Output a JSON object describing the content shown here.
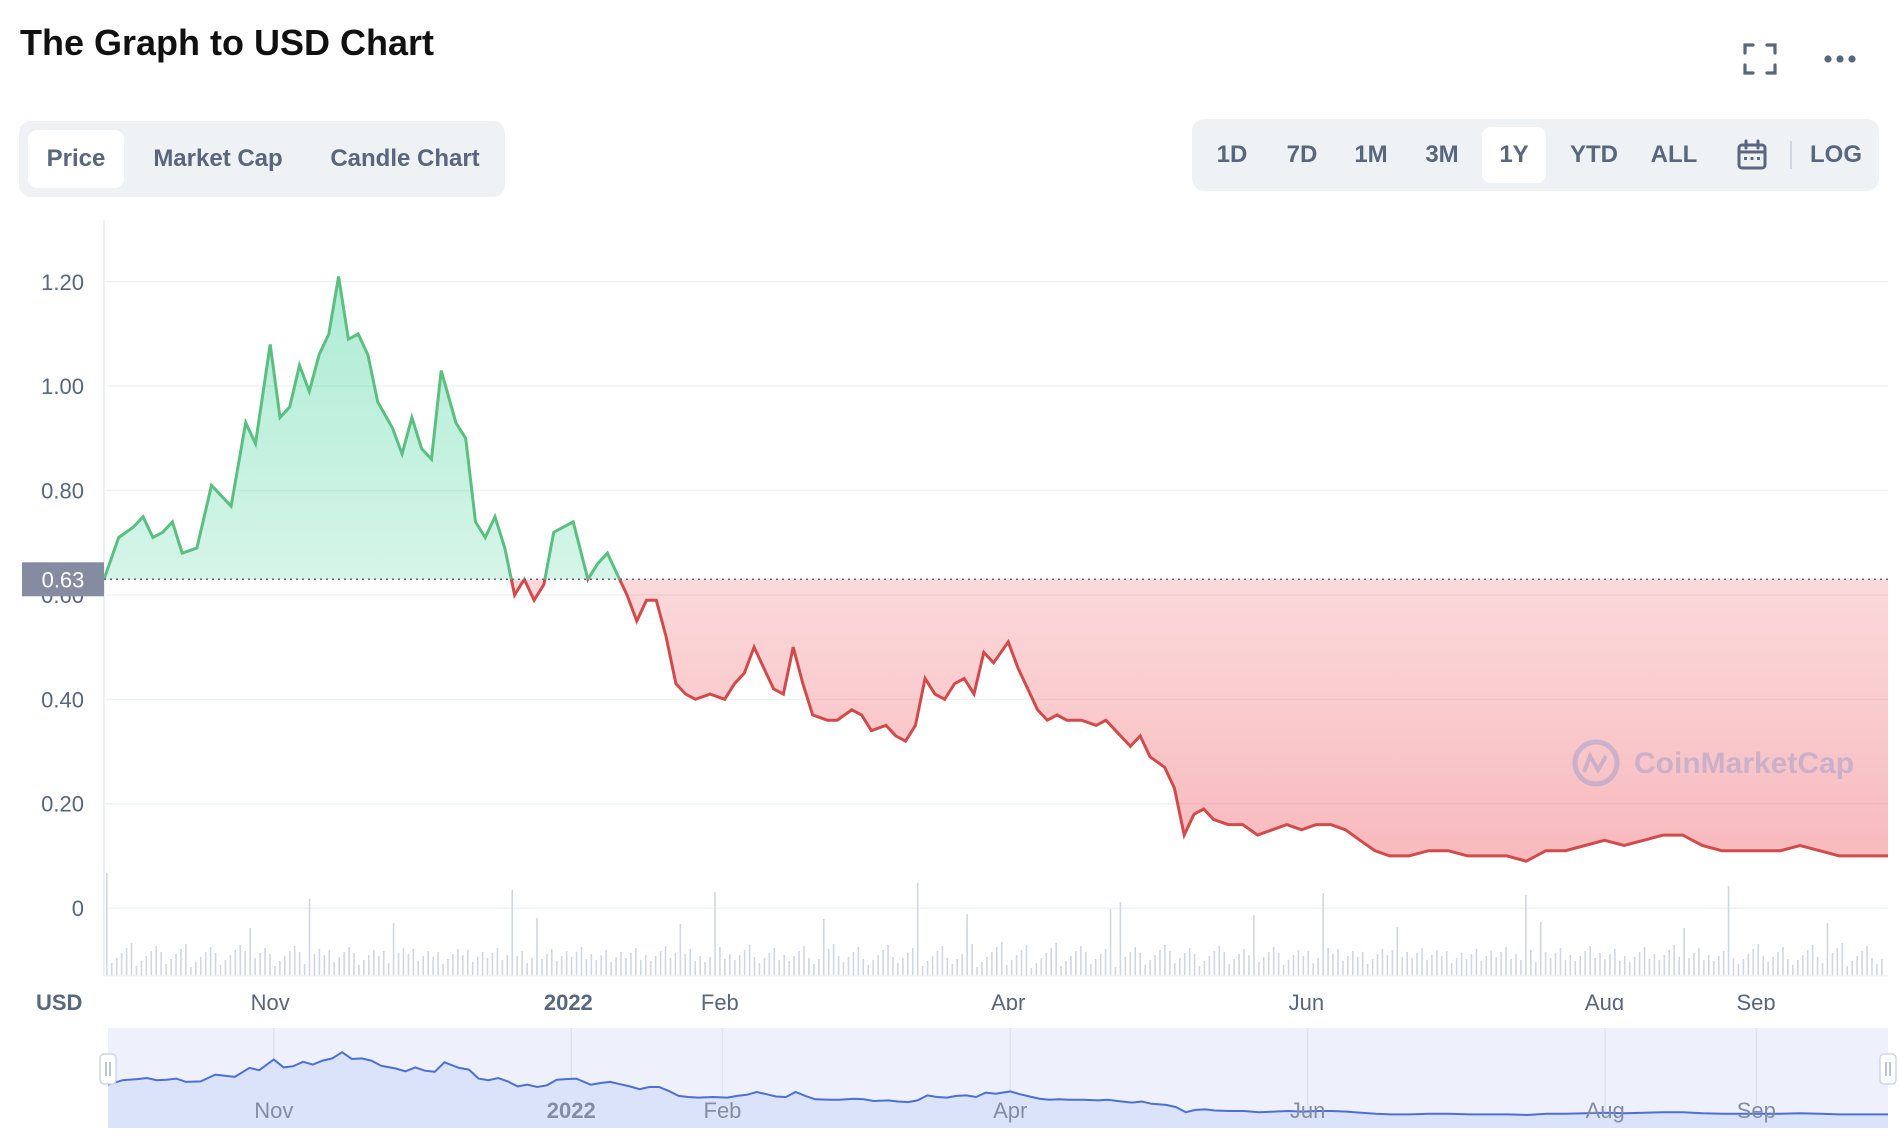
{
  "header": {
    "title": "The Graph to USD Chart",
    "fullscreen_icon": "fullscreen-icon",
    "more_icon": "more-horizontal-icon"
  },
  "tabs": [
    {
      "label": "Price",
      "active": true
    },
    {
      "label": "Market Cap",
      "active": false
    },
    {
      "label": "Candle Chart",
      "active": false
    }
  ],
  "ranges": {
    "items": [
      {
        "label": "1D",
        "active": false
      },
      {
        "label": "7D",
        "active": false
      },
      {
        "label": "1M",
        "active": false
      },
      {
        "label": "3M",
        "active": false
      },
      {
        "label": "1Y",
        "active": true
      },
      {
        "label": "YTD",
        "active": false
      },
      {
        "label": "ALL",
        "active": false
      }
    ],
    "calendar_icon": "calendar-icon",
    "log_label": "LOG"
  },
  "watermark": "CoinMarketCap",
  "colors": {
    "up": "#16c784",
    "up_line": "#5bbf80",
    "down": "#ea3943",
    "down_line": "#d34a4a",
    "navigator_line": "#4b6fd6",
    "navigator_fill": "#dbe3fb",
    "text_muted": "#58667e"
  },
  "chart_data": {
    "type": "line",
    "title": "The Graph to USD Chart",
    "ylabel": "USD",
    "xlabel": "",
    "ylim": [
      -0.13,
      1.28
    ],
    "yticks": [
      "1.20",
      "1.00",
      "0.80",
      "0.60",
      "0.40",
      "0.20",
      "0"
    ],
    "ytick_values": [
      1.2,
      1.0,
      0.8,
      0.6,
      0.4,
      0.2,
      0
    ],
    "x_range": [
      "2021-09-28",
      "2022-09-28"
    ],
    "xticks": [
      {
        "label": "Nov",
        "date": "2021-11-01",
        "bold": false
      },
      {
        "label": "2022",
        "date": "2022-01-01",
        "bold": true
      },
      {
        "label": "Feb",
        "date": "2022-02-01",
        "bold": false
      },
      {
        "label": "Apr",
        "date": "2022-04-01",
        "bold": false
      },
      {
        "label": "Jun",
        "date": "2022-06-01",
        "bold": false
      },
      {
        "label": "Aug",
        "date": "2022-08-01",
        "bold": false
      },
      {
        "label": "Sep",
        "date": "2022-09-01",
        "bold": false
      }
    ],
    "reference_price": 0.63,
    "reference_label": "0.63",
    "series": [
      {
        "name": "",
        "points": [
          [
            "2021-09-28",
            0.63
          ],
          [
            "2021-10-01",
            0.71
          ],
          [
            "2021-10-04",
            0.73
          ],
          [
            "2021-10-06",
            0.75
          ],
          [
            "2021-10-08",
            0.71
          ],
          [
            "2021-10-10",
            0.72
          ],
          [
            "2021-10-12",
            0.74
          ],
          [
            "2021-10-14",
            0.68
          ],
          [
            "2021-10-17",
            0.69
          ],
          [
            "2021-10-20",
            0.81
          ],
          [
            "2021-10-22",
            0.79
          ],
          [
            "2021-10-24",
            0.77
          ],
          [
            "2021-10-27",
            0.93
          ],
          [
            "2021-10-29",
            0.89
          ],
          [
            "2021-11-01",
            1.08
          ],
          [
            "2021-11-03",
            0.94
          ],
          [
            "2021-11-05",
            0.96
          ],
          [
            "2021-11-07",
            1.04
          ],
          [
            "2021-11-09",
            0.99
          ],
          [
            "2021-11-11",
            1.06
          ],
          [
            "2021-11-13",
            1.1
          ],
          [
            "2021-11-15",
            1.21
          ],
          [
            "2021-11-17",
            1.09
          ],
          [
            "2021-11-19",
            1.1
          ],
          [
            "2021-11-21",
            1.06
          ],
          [
            "2021-11-23",
            0.97
          ],
          [
            "2021-11-26",
            0.92
          ],
          [
            "2021-11-28",
            0.87
          ],
          [
            "2021-11-30",
            0.94
          ],
          [
            "2021-12-02",
            0.88
          ],
          [
            "2021-12-04",
            0.86
          ],
          [
            "2021-12-06",
            1.03
          ],
          [
            "2021-12-09",
            0.93
          ],
          [
            "2021-12-11",
            0.9
          ],
          [
            "2021-12-13",
            0.74
          ],
          [
            "2021-12-15",
            0.71
          ],
          [
            "2021-12-17",
            0.75
          ],
          [
            "2021-12-19",
            0.69
          ],
          [
            "2021-12-21",
            0.6
          ],
          [
            "2021-12-23",
            0.63
          ],
          [
            "2021-12-25",
            0.59
          ],
          [
            "2021-12-27",
            0.62
          ],
          [
            "2021-12-29",
            0.72
          ],
          [
            "2021-12-31",
            0.73
          ],
          [
            "2022-01-02",
            0.74
          ],
          [
            "2022-01-05",
            0.63
          ],
          [
            "2022-01-07",
            0.66
          ],
          [
            "2022-01-09",
            0.68
          ],
          [
            "2022-01-11",
            0.64
          ],
          [
            "2022-01-13",
            0.6
          ],
          [
            "2022-01-15",
            0.55
          ],
          [
            "2022-01-17",
            0.59
          ],
          [
            "2022-01-19",
            0.59
          ],
          [
            "2022-01-21",
            0.52
          ],
          [
            "2022-01-23",
            0.43
          ],
          [
            "2022-01-25",
            0.41
          ],
          [
            "2022-01-27",
            0.4
          ],
          [
            "2022-01-30",
            0.41
          ],
          [
            "2022-02-02",
            0.4
          ],
          [
            "2022-02-04",
            0.43
          ],
          [
            "2022-02-06",
            0.45
          ],
          [
            "2022-02-08",
            0.5
          ],
          [
            "2022-02-10",
            0.46
          ],
          [
            "2022-02-12",
            0.42
          ],
          [
            "2022-02-14",
            0.41
          ],
          [
            "2022-02-16",
            0.5
          ],
          [
            "2022-02-18",
            0.43
          ],
          [
            "2022-02-20",
            0.37
          ],
          [
            "2022-02-23",
            0.36
          ],
          [
            "2022-02-25",
            0.36
          ],
          [
            "2022-02-28",
            0.38
          ],
          [
            "2022-03-02",
            0.37
          ],
          [
            "2022-03-04",
            0.34
          ],
          [
            "2022-03-07",
            0.35
          ],
          [
            "2022-03-09",
            0.33
          ],
          [
            "2022-03-11",
            0.32
          ],
          [
            "2022-03-13",
            0.35
          ],
          [
            "2022-03-15",
            0.44
          ],
          [
            "2022-03-17",
            0.41
          ],
          [
            "2022-03-19",
            0.4
          ],
          [
            "2022-03-21",
            0.43
          ],
          [
            "2022-03-23",
            0.44
          ],
          [
            "2022-03-25",
            0.41
          ],
          [
            "2022-03-27",
            0.49
          ],
          [
            "2022-03-29",
            0.47
          ],
          [
            "2022-04-01",
            0.51
          ],
          [
            "2022-04-03",
            0.46
          ],
          [
            "2022-04-05",
            0.42
          ],
          [
            "2022-04-07",
            0.38
          ],
          [
            "2022-04-09",
            0.36
          ],
          [
            "2022-04-11",
            0.37
          ],
          [
            "2022-04-13",
            0.36
          ],
          [
            "2022-04-16",
            0.36
          ],
          [
            "2022-04-19",
            0.35
          ],
          [
            "2022-04-21",
            0.36
          ],
          [
            "2022-04-23",
            0.34
          ],
          [
            "2022-04-26",
            0.31
          ],
          [
            "2022-04-28",
            0.33
          ],
          [
            "2022-04-30",
            0.29
          ],
          [
            "2022-05-03",
            0.27
          ],
          [
            "2022-05-05",
            0.23
          ],
          [
            "2022-05-07",
            0.14
          ],
          [
            "2022-05-09",
            0.18
          ],
          [
            "2022-05-11",
            0.19
          ],
          [
            "2022-05-13",
            0.17
          ],
          [
            "2022-05-16",
            0.16
          ],
          [
            "2022-05-19",
            0.16
          ],
          [
            "2022-05-22",
            0.14
          ],
          [
            "2022-05-25",
            0.15
          ],
          [
            "2022-05-28",
            0.16
          ],
          [
            "2022-05-31",
            0.15
          ],
          [
            "2022-06-03",
            0.16
          ],
          [
            "2022-06-06",
            0.16
          ],
          [
            "2022-06-09",
            0.15
          ],
          [
            "2022-06-12",
            0.13
          ],
          [
            "2022-06-15",
            0.11
          ],
          [
            "2022-06-18",
            0.1
          ],
          [
            "2022-06-22",
            0.1
          ],
          [
            "2022-06-26",
            0.11
          ],
          [
            "2022-06-30",
            0.11
          ],
          [
            "2022-07-04",
            0.1
          ],
          [
            "2022-07-08",
            0.1
          ],
          [
            "2022-07-12",
            0.1
          ],
          [
            "2022-07-16",
            0.09
          ],
          [
            "2022-07-20",
            0.11
          ],
          [
            "2022-07-24",
            0.11
          ],
          [
            "2022-07-28",
            0.12
          ],
          [
            "2022-08-01",
            0.13
          ],
          [
            "2022-08-05",
            0.12
          ],
          [
            "2022-08-09",
            0.13
          ],
          [
            "2022-08-13",
            0.14
          ],
          [
            "2022-08-17",
            0.14
          ],
          [
            "2022-08-21",
            0.12
          ],
          [
            "2022-08-25",
            0.11
          ],
          [
            "2022-08-29",
            0.11
          ],
          [
            "2022-09-02",
            0.11
          ],
          [
            "2022-09-06",
            0.11
          ],
          [
            "2022-09-10",
            0.12
          ],
          [
            "2022-09-14",
            0.11
          ],
          [
            "2022-09-18",
            0.1
          ],
          [
            "2022-09-22",
            0.1
          ],
          [
            "2022-09-28",
            0.1
          ]
        ]
      }
    ]
  },
  "axis": {
    "currency_label": "USD"
  }
}
